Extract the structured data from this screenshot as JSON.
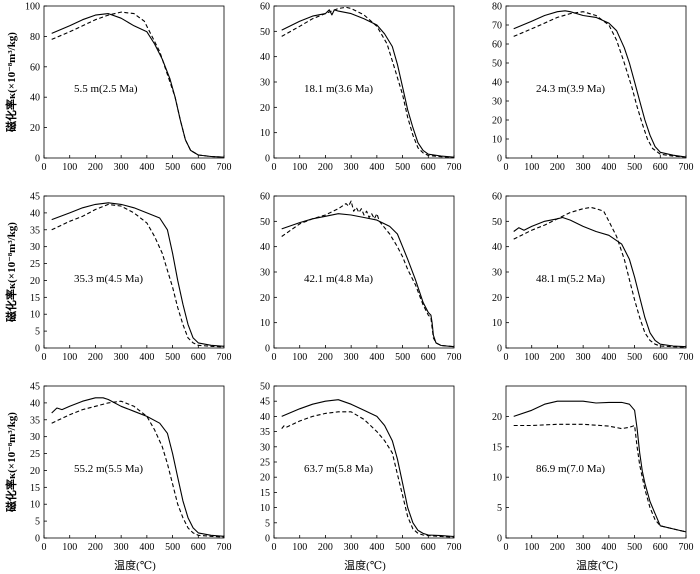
{
  "ylabel": "磁化率κ(×10⁻⁸m³/kg)",
  "xlabel": "温度(℃)",
  "x_ticks": [
    "0",
    "100",
    "200",
    "300",
    "400",
    "500",
    "600",
    "700"
  ],
  "chart_data": [
    {
      "type": "line",
      "label": "5.5 m(2.5 Ma)",
      "xlim": [
        0,
        700
      ],
      "ylim": [
        0,
        100
      ],
      "yticks": [
        0,
        20,
        40,
        60,
        80,
        100
      ],
      "series": [
        {
          "name": "solid",
          "style": "solid",
          "x": [
            30,
            100,
            150,
            200,
            250,
            300,
            350,
            400,
            430,
            460,
            490,
            510,
            530,
            550,
            570,
            600,
            650,
            700
          ],
          "y": [
            82,
            87,
            91,
            94,
            95,
            92,
            87,
            83,
            75,
            65,
            52,
            40,
            25,
            12,
            5,
            2,
            1,
            0.5
          ]
        },
        {
          "name": "dashed",
          "style": "dashed",
          "x": [
            30,
            100,
            150,
            200,
            250,
            300,
            350,
            390,
            420,
            450,
            480,
            510,
            530,
            550,
            570,
            600,
            650,
            700
          ],
          "y": [
            78,
            83,
            87,
            91,
            94,
            96,
            95,
            90,
            80,
            70,
            55,
            40,
            25,
            12,
            5,
            2,
            1,
            0.5
          ]
        }
      ]
    },
    {
      "type": "line",
      "label": "18.1 m(3.6 Ma)",
      "xlim": [
        0,
        700
      ],
      "ylim": [
        0,
        60
      ],
      "yticks": [
        0,
        10,
        20,
        30,
        40,
        50,
        60
      ],
      "series": [
        {
          "name": "solid",
          "style": "solid",
          "x": [
            30,
            100,
            150,
            200,
            215,
            225,
            235,
            250,
            300,
            350,
            400,
            430,
            460,
            480,
            500,
            520,
            540,
            560,
            580,
            600,
            650,
            700
          ],
          "y": [
            50.5,
            54,
            56,
            57,
            58.5,
            56.5,
            58.5,
            58,
            57,
            55,
            52.5,
            49,
            44,
            37,
            28,
            19,
            12,
            6,
            3,
            1.5,
            0.8,
            0.3
          ]
        },
        {
          "name": "dashed",
          "style": "dashed",
          "x": [
            30,
            100,
            150,
            200,
            250,
            280,
            300,
            350,
            400,
            440,
            470,
            500,
            520,
            540,
            560,
            580,
            600,
            650,
            700
          ],
          "y": [
            48,
            52,
            55,
            57,
            59,
            59.5,
            59,
            56.5,
            52,
            45,
            35,
            25,
            16,
            9,
            4,
            2,
            1,
            0.5,
            0.2
          ]
        }
      ]
    },
    {
      "type": "line",
      "label": "24.3 m(3.9 Ma)",
      "xlim": [
        0,
        700
      ],
      "ylim": [
        0,
        80
      ],
      "yticks": [
        0,
        10,
        20,
        30,
        40,
        50,
        60,
        70,
        80
      ],
      "series": [
        {
          "name": "solid",
          "style": "solid",
          "x": [
            30,
            100,
            150,
            200,
            230,
            250,
            300,
            350,
            400,
            430,
            460,
            480,
            500,
            520,
            540,
            560,
            580,
            600,
            650,
            700
          ],
          "y": [
            68,
            72,
            75,
            77,
            77.5,
            77,
            75,
            74,
            71,
            67,
            58,
            50,
            40,
            30,
            20,
            12,
            6,
            3,
            1.5,
            0.5
          ]
        },
        {
          "name": "dashed",
          "style": "dashed",
          "x": [
            30,
            100,
            150,
            200,
            250,
            300,
            350,
            400,
            430,
            460,
            490,
            510,
            530,
            550,
            570,
            600,
            650,
            700
          ],
          "y": [
            64,
            68,
            71,
            74,
            76,
            77,
            75,
            70,
            62,
            50,
            37,
            27,
            18,
            10,
            5,
            2,
            1,
            0.5
          ]
        }
      ]
    },
    {
      "type": "line",
      "label": "35.3 m(4.5 Ma)",
      "xlim": [
        0,
        700
      ],
      "ylim": [
        0,
        45
      ],
      "yticks": [
        0,
        5,
        10,
        15,
        20,
        25,
        30,
        35,
        40,
        45
      ],
      "series": [
        {
          "name": "solid",
          "style": "solid",
          "x": [
            30,
            100,
            150,
            200,
            250,
            300,
            350,
            400,
            450,
            480,
            500,
            520,
            540,
            560,
            580,
            600,
            650,
            700
          ],
          "y": [
            38,
            40,
            41.5,
            42.5,
            43,
            42.5,
            41.5,
            40,
            38.5,
            35,
            28,
            20,
            13,
            7,
            3,
            1.5,
            0.8,
            0.5
          ]
        },
        {
          "name": "dashed",
          "style": "dashed",
          "x": [
            30,
            100,
            150,
            200,
            250,
            300,
            350,
            400,
            430,
            460,
            480,
            500,
            520,
            540,
            560,
            580,
            600,
            650,
            700
          ],
          "y": [
            35,
            37.5,
            39,
            41,
            42.5,
            42,
            40,
            37,
            33,
            28,
            23,
            18,
            12,
            7,
            3,
            1.5,
            0.8,
            0.5,
            0.3
          ]
        }
      ]
    },
    {
      "type": "line",
      "label": "42.1 m(4.8 Ma)",
      "xlim": [
        0,
        700
      ],
      "ylim": [
        0,
        60
      ],
      "yticks": [
        0,
        10,
        20,
        30,
        40,
        50,
        60
      ],
      "series": [
        {
          "name": "solid",
          "style": "solid",
          "x": [
            30,
            100,
            150,
            200,
            250,
            300,
            350,
            400,
            450,
            480,
            500,
            520,
            550,
            580,
            600,
            610,
            615,
            620,
            630,
            650,
            700
          ],
          "y": [
            47,
            49.5,
            51,
            52,
            53,
            52.5,
            51.5,
            50.5,
            48,
            45,
            40,
            35,
            27,
            18,
            14,
            13,
            10,
            5,
            2,
            1,
            0.5
          ]
        },
        {
          "name": "dashed",
          "style": "dashed",
          "x": [
            30,
            100,
            150,
            200,
            250,
            280,
            290,
            300,
            310,
            320,
            330,
            340,
            350,
            360,
            370,
            380,
            390,
            400,
            410,
            450,
            480,
            500,
            520,
            550,
            580,
            600,
            610,
            615,
            620,
            630,
            650,
            700
          ],
          "y": [
            44,
            49,
            51,
            52.5,
            55,
            57,
            56,
            58,
            54,
            55.5,
            53.5,
            55,
            52.5,
            54,
            51.5,
            53,
            51,
            53,
            50,
            45,
            40,
            36,
            31,
            25,
            17,
            13,
            12,
            8,
            4,
            2,
            1,
            0.5
          ]
        }
      ]
    },
    {
      "type": "line",
      "label": "48.1 m(5.2 Ma)",
      "xlim": [
        0,
        700
      ],
      "ylim": [
        0,
        60
      ],
      "yticks": [
        0,
        10,
        20,
        30,
        40,
        50,
        60
      ],
      "series": [
        {
          "name": "solid",
          "style": "solid",
          "x": [
            30,
            50,
            70,
            100,
            150,
            200,
            220,
            250,
            300,
            350,
            400,
            450,
            480,
            500,
            520,
            540,
            560,
            580,
            600,
            650,
            700
          ],
          "y": [
            46,
            47.5,
            46.5,
            48,
            50,
            51,
            51.5,
            50.5,
            48,
            46,
            44.5,
            41,
            35,
            28,
            20,
            12,
            6,
            3,
            1.5,
            0.8,
            0.5
          ]
        },
        {
          "name": "dashed",
          "style": "dashed",
          "x": [
            30,
            100,
            150,
            200,
            250,
            300,
            330,
            350,
            380,
            400,
            430,
            460,
            480,
            500,
            520,
            540,
            560,
            580,
            600,
            650,
            700
          ],
          "y": [
            43,
            46.5,
            48.5,
            51,
            53.5,
            55,
            55.5,
            55,
            54,
            50,
            44,
            35,
            27,
            19,
            12,
            6,
            3,
            1.5,
            0.8,
            0.5,
            0.3
          ]
        }
      ]
    },
    {
      "type": "line",
      "label": "55.2 m(5.5 Ma)",
      "xlim": [
        0,
        700
      ],
      "ylim": [
        0,
        45
      ],
      "yticks": [
        0,
        5,
        10,
        15,
        20,
        25,
        30,
        35,
        40,
        45
      ],
      "series": [
        {
          "name": "solid",
          "style": "solid",
          "x": [
            30,
            50,
            70,
            100,
            150,
            200,
            230,
            250,
            300,
            350,
            400,
            450,
            480,
            500,
            520,
            540,
            560,
            580,
            600,
            650,
            700
          ],
          "y": [
            37,
            38.5,
            38,
            39,
            40.5,
            41.5,
            41.5,
            41,
            39,
            37.5,
            36,
            34,
            31,
            25,
            18,
            11,
            6,
            3,
            1.5,
            0.8,
            0.5
          ]
        },
        {
          "name": "dashed",
          "style": "dashed",
          "x": [
            30,
            100,
            150,
            200,
            250,
            300,
            350,
            400,
            430,
            460,
            480,
            500,
            520,
            540,
            560,
            580,
            600,
            650,
            700
          ],
          "y": [
            34,
            36.5,
            38,
            39,
            40,
            40.5,
            39,
            36,
            32,
            27,
            22,
            16,
            10,
            6,
            3,
            1.5,
            0.8,
            0.5,
            0.3
          ]
        }
      ]
    },
    {
      "type": "line",
      "label": "63.7 m(5.8 Ma)",
      "xlim": [
        0,
        700
      ],
      "ylim": [
        0,
        50
      ],
      "yticks": [
        0,
        5,
        10,
        15,
        20,
        25,
        30,
        35,
        40,
        45,
        50
      ],
      "series": [
        {
          "name": "solid",
          "style": "solid",
          "x": [
            30,
            100,
            150,
            200,
            250,
            300,
            350,
            400,
            430,
            460,
            480,
            500,
            520,
            540,
            560,
            580,
            600,
            650,
            700
          ],
          "y": [
            40,
            42.5,
            44,
            45,
            45.5,
            44,
            42,
            40,
            37,
            32,
            26,
            18,
            10,
            5,
            2.5,
            1.5,
            1,
            0.8,
            0.5
          ]
        },
        {
          "name": "dashed",
          "style": "dashed",
          "x": [
            30,
            40,
            50,
            100,
            150,
            200,
            250,
            300,
            350,
            400,
            430,
            460,
            480,
            500,
            520,
            540,
            560,
            580,
            600,
            650,
            700
          ],
          "y": [
            36,
            37,
            36.5,
            38.5,
            40,
            41,
            41.5,
            41.5,
            39,
            35,
            32,
            28,
            21,
            14,
            7,
            3,
            1.5,
            1,
            0.8,
            0.5,
            0.3
          ]
        }
      ]
    },
    {
      "type": "line",
      "label": "86.9 m(7.0 Ma)",
      "xlim": [
        0,
        700
      ],
      "ylim": [
        0,
        25
      ],
      "yticks": [
        0,
        5,
        10,
        15,
        20
      ],
      "series": [
        {
          "name": "solid",
          "style": "solid",
          "x": [
            30,
            100,
            150,
            200,
            250,
            300,
            350,
            400,
            450,
            480,
            500,
            510,
            520,
            530,
            540,
            560,
            580,
            600,
            650,
            700
          ],
          "y": [
            20,
            21,
            22,
            22.5,
            22.5,
            22.5,
            22.2,
            22.3,
            22.3,
            22,
            21,
            18,
            14,
            11,
            9,
            6,
            4,
            2,
            1.5,
            1
          ]
        },
        {
          "name": "dashed",
          "style": "dashed",
          "x": [
            30,
            100,
            200,
            300,
            400,
            450,
            480,
            500,
            510,
            520,
            530,
            540,
            560,
            580,
            600,
            650,
            700
          ],
          "y": [
            18.5,
            18.5,
            18.7,
            18.7,
            18.4,
            18,
            18.2,
            18.5,
            15,
            12,
            10,
            8,
            5,
            3,
            2,
            1.5,
            1
          ]
        }
      ]
    }
  ]
}
